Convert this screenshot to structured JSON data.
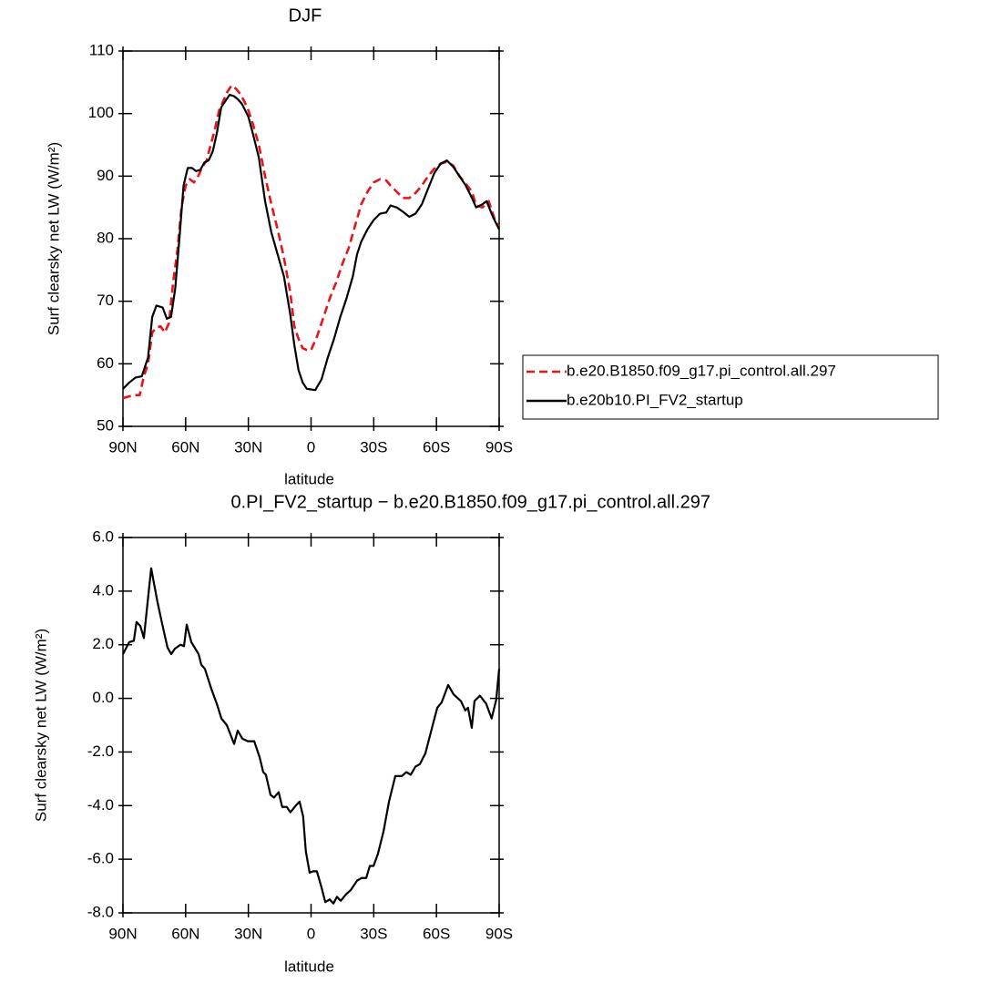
{
  "chart_data": [
    {
      "type": "line",
      "title": "DJF",
      "xlabel": "latitude",
      "ylabel": "Surf clearsky net LW (W/m²)",
      "xlim": [
        90,
        -90
      ],
      "ylim": [
        50,
        110
      ],
      "xticks": [
        {
          "value": 90,
          "label": "90N"
        },
        {
          "value": 60,
          "label": "60N"
        },
        {
          "value": 30,
          "label": "30N"
        },
        0,
        {
          "value": -30,
          "label": "30S"
        },
        {
          "value": -60,
          "label": "60S"
        },
        {
          "value": -90,
          "label": "90S"
        }
      ],
      "yticks": [
        50,
        60,
        70,
        80,
        90,
        100,
        110
      ],
      "legend": "right",
      "series": [
        {
          "name": "b.e20.B1850.f09_g17.pi_control.all.297",
          "color": "#e8141a",
          "dashed": true,
          "x": [
            90,
            87,
            84,
            82,
            80,
            78,
            76,
            74,
            72,
            70,
            68,
            66,
            64,
            62,
            60,
            58,
            56,
            54,
            52,
            50,
            48,
            46,
            44,
            42,
            40,
            38,
            36,
            34,
            32,
            30,
            28,
            25,
            22,
            19,
            16,
            13,
            10,
            8,
            6,
            4,
            2,
            0,
            -3,
            -6,
            -9,
            -12,
            -15,
            -18,
            -21,
            -24,
            -27,
            -30,
            -33,
            -36,
            -38,
            -41,
            -44,
            -47,
            -50,
            -53,
            -56,
            -59,
            -62,
            -65,
            -68,
            -71,
            -74,
            -77,
            -79,
            -82,
            -85,
            -88,
            -90
          ],
          "values": [
            54.5,
            54.8,
            55,
            55,
            58,
            60,
            65,
            65.8,
            66,
            65,
            66.5,
            73,
            78,
            85,
            88.5,
            89.5,
            89,
            90,
            91.5,
            92.5,
            95,
            97.5,
            100.5,
            102,
            103.5,
            104.5,
            104,
            103.2,
            102,
            100.5,
            98.5,
            95,
            90,
            85.5,
            81.5,
            77,
            71.5,
            66,
            64,
            62.5,
            62.2,
            62.2,
            64.5,
            67.5,
            70.5,
            73,
            76,
            78.5,
            82,
            85.5,
            87.5,
            89,
            89.5,
            89.3,
            88.5,
            87.5,
            86.5,
            86.5,
            87.3,
            88.5,
            90,
            91.2,
            92,
            92.3,
            91.7,
            90,
            88.8,
            87.5,
            85.3,
            85,
            86,
            83,
            82
          ]
        },
        {
          "name": "b.e20b10.PI_FV2_startup",
          "color": "#000000",
          "dashed": false,
          "x": [
            90,
            87,
            84,
            81,
            78,
            76,
            74,
            71,
            69,
            67,
            65,
            63,
            61,
            59,
            57,
            55,
            53,
            51,
            49,
            47,
            45,
            43,
            41,
            39,
            37,
            35,
            33,
            30,
            28,
            25,
            22,
            19,
            16,
            13,
            10,
            8,
            6,
            4,
            2,
            0,
            -2,
            -5,
            -8,
            -11,
            -14,
            -17,
            -20,
            -22,
            -24,
            -27,
            -30,
            -33,
            -36,
            -38,
            -41,
            -44,
            -47,
            -50,
            -53,
            -56,
            -59,
            -62,
            -65,
            -68,
            -71,
            -74,
            -77,
            -79,
            -82,
            -84,
            -87,
            -90
          ],
          "values": [
            56,
            57,
            57.8,
            58,
            61,
            67.5,
            69.3,
            69,
            67.2,
            67.5,
            72,
            80,
            88.5,
            91.3,
            91.3,
            90.8,
            91,
            92.2,
            92.5,
            94,
            97,
            101,
            102,
            103,
            102.8,
            102.3,
            101.5,
            99.5,
            97,
            93,
            86,
            81,
            77.5,
            74,
            68,
            63,
            59,
            57,
            56,
            55.9,
            55.8,
            57.5,
            61,
            64,
            67.5,
            70.5,
            74,
            77.5,
            79.5,
            81.5,
            83,
            84,
            84.2,
            85.3,
            85,
            84.3,
            83.5,
            84,
            85.5,
            88,
            90.5,
            92,
            92.5,
            91.5,
            90,
            88.5,
            86.5,
            85,
            85.5,
            86,
            83.5,
            81.5
          ]
        }
      ]
    },
    {
      "type": "line",
      "title": "0.PI_FV2_startup − b.e20.B1850.f09_g17.pi_control.all.297",
      "xlabel": "latitude",
      "ylabel": "Surf clearsky net LW (W/m²)",
      "xlim": [
        90,
        -90
      ],
      "ylim": [
        -8,
        6
      ],
      "xticks": [
        {
          "value": 90,
          "label": "90N"
        },
        {
          "value": 60,
          "label": "60N"
        },
        {
          "value": 30,
          "label": "30N"
        },
        0,
        {
          "value": -30,
          "label": "30S"
        },
        {
          "value": -60,
          "label": "60S"
        },
        {
          "value": -90,
          "label": "90S"
        }
      ],
      "yticks": [
        {
          "value": -8,
          "label": "-8.0"
        },
        {
          "value": -6,
          "label": "-6.0"
        },
        {
          "value": -4,
          "label": "-4.0"
        },
        {
          "value": -2,
          "label": "-2.0"
        },
        {
          "value": 0,
          "label": "0.0"
        },
        {
          "value": 2,
          "label": "2.0"
        },
        {
          "value": 4,
          "label": "4.0"
        },
        {
          "value": 6,
          "label": "6.0"
        }
      ],
      "series": [
        {
          "color": "#000000",
          "dashed": false,
          "x": [
            90,
            87,
            84.8,
            83.5,
            81.7,
            80,
            76.5,
            73.5,
            71.3,
            68.7,
            66.9,
            65.2,
            62.5,
            60.8,
            59.5,
            57.3,
            53.8,
            52.5,
            50.8,
            47.7,
            45.1,
            42.9,
            40.3,
            36.8,
            35.1,
            32.9,
            30.3,
            27.2,
            24.6,
            22.9,
            21.6,
            19.4,
            17.7,
            15.5,
            13.8,
            11.6,
            9.9,
            7.3,
            5.5,
            3.8,
            2.5,
            0.7,
            -1,
            -2.8,
            -5,
            -6.8,
            -8.9,
            -10.7,
            -12.4,
            -14.2,
            -16.8,
            -19,
            -22,
            -24.2,
            -26.4,
            -28.1,
            -29.9,
            -32,
            -34.7,
            -37.3,
            -40.3,
            -43.4,
            -45.6,
            -47.7,
            -49.9,
            -52.1,
            -54.7,
            -57.7,
            -60.4,
            -62.5,
            -65.6,
            -68.2,
            -71.7,
            -73.8,
            -75.1,
            -76.9,
            -78.2,
            -80.8,
            -83.8,
            -86.4,
            -88.6,
            -90
          ],
          "values": [
            1.65,
            2.1,
            2.15,
            2.85,
            2.7,
            2.25,
            4.85,
            3.6,
            2.8,
            1.9,
            1.65,
            1.85,
            2.0,
            1.95,
            2.75,
            2.1,
            1.65,
            1.25,
            1.1,
            0.35,
            -0.2,
            -0.75,
            -1.0,
            -1.7,
            -1.2,
            -1.5,
            -1.6,
            -1.6,
            -2.2,
            -2.75,
            -2.85,
            -3.6,
            -3.7,
            -3.5,
            -4.05,
            -4.05,
            -4.25,
            -4.0,
            -3.85,
            -4.4,
            -5.7,
            -6.5,
            -6.45,
            -6.45,
            -7.05,
            -7.6,
            -7.5,
            -7.65,
            -7.4,
            -7.55,
            -7.3,
            -7.15,
            -6.8,
            -6.7,
            -6.7,
            -6.25,
            -6.25,
            -5.8,
            -4.95,
            -3.85,
            -2.9,
            -2.9,
            -2.75,
            -2.85,
            -2.55,
            -2.45,
            -2.05,
            -1.15,
            -0.35,
            -0.15,
            0.5,
            0.15,
            -0.1,
            -0.45,
            -0.35,
            -1.1,
            -0.1,
            0.1,
            -0.2,
            -0.75,
            -0.05,
            1.1
          ]
        }
      ]
    }
  ]
}
